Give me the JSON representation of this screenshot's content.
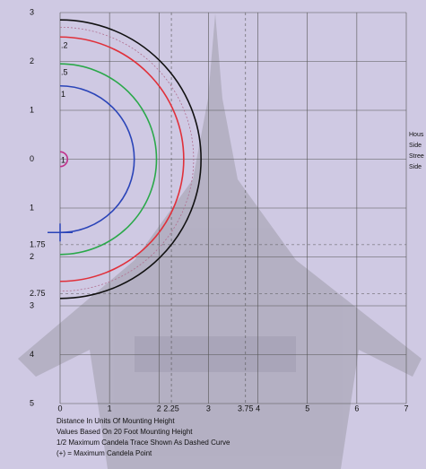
{
  "chart_data": {
    "type": "isofootcandle",
    "xlim": [
      0,
      7
    ],
    "ylim": [
      -5,
      3
    ],
    "xticks": [
      0,
      1,
      2,
      2.25,
      3,
      3.75,
      4,
      5,
      6,
      7
    ],
    "yticks": [
      3,
      2,
      1,
      0,
      {
        "value": -1,
        "label": "1"
      },
      {
        "value": -1.75,
        "label": "1.75"
      },
      {
        "value": -2,
        "label": "2"
      },
      {
        "value": -2.75,
        "label": "2.75"
      },
      {
        "value": -3,
        "label": "3"
      },
      {
        "value": -4,
        "label": "4"
      },
      {
        "value": -5,
        "label": "5"
      }
    ],
    "grid": true,
    "contours": [
      {
        "name": "",
        "color": "#111111",
        "radius": 2.85
      },
      {
        "name": ".2",
        "color": "#e0303a",
        "radius": 2.5
      },
      {
        "name": ".5",
        "color": "#2aa84a",
        "radius": 1.95
      },
      {
        "name": "1",
        "color": "#2a44b8",
        "radius": 1.5
      },
      {
        "name": "1",
        "color": "#c0308a",
        "radius": 0.15
      }
    ],
    "half_max_radius": 2.7,
    "max_candela_point": {
      "x": 0,
      "y": -1.5
    },
    "side_labels": [
      "Hous",
      "Side",
      "Stree",
      "Side"
    ],
    "notes": [
      "Distance In Units Of Mounting Height",
      "Values Based On 20 Foot Mounting Height",
      "1/2 Maximum Candela Trace Shown As Dashed Curve",
      "(+) = Maximum Candela Point"
    ]
  }
}
